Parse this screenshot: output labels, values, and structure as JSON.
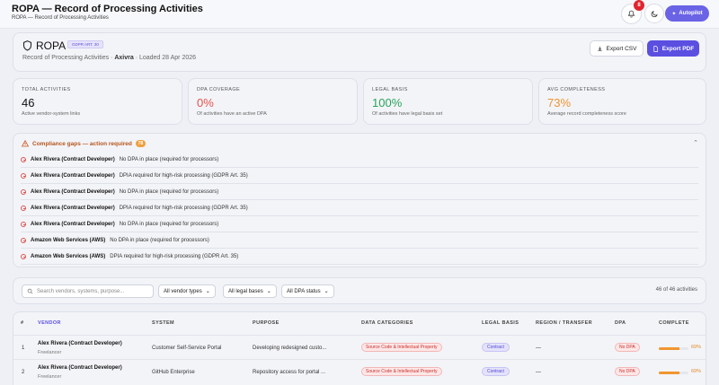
{
  "header": {
    "title": "ROPA — Record of Processing Activities",
    "subtitle": "ROPA — Record of Processing Activities",
    "notifications": "8",
    "autopilot": "Autopilot"
  },
  "ropa": {
    "title": "ROPA",
    "badge": "GDPR ART. 30",
    "meta_prefix": "Record of Processing Activities ·",
    "org": "Axivra",
    "meta_suffix": "· Loaded 28 Apr 2026",
    "export_csv": "Export CSV",
    "export_pdf": "Export PDF"
  },
  "stats": [
    {
      "label": "TOTAL ACTIVITIES",
      "value": "46",
      "hint": "Active vendor-system links",
      "color": "#111111"
    },
    {
      "label": "DPA COVERAGE",
      "value": "0%",
      "hint": "Of activities have an active DPA",
      "color": "#e5534b"
    },
    {
      "label": "LEGAL BASIS",
      "value": "100%",
      "hint": "Of activities have legal basis set",
      "color": "#2aa45a"
    },
    {
      "label": "AVG COMPLETENESS",
      "value": "73%",
      "hint": "Average record completeness score",
      "color": "#ee9433"
    }
  ],
  "gaps": {
    "title": "Compliance gaps — action required",
    "count": "78",
    "rows": [
      {
        "vendor": "Alex Rivera (Contract Developer)",
        "issue": "No DPA in place (required for processors)"
      },
      {
        "vendor": "Alex Rivera (Contract Developer)",
        "issue": "DPIA required for high-risk processing (GDPR Art. 35)"
      },
      {
        "vendor": "Alex Rivera (Contract Developer)",
        "issue": "No DPA in place (required for processors)"
      },
      {
        "vendor": "Alex Rivera (Contract Developer)",
        "issue": "DPIA required for high-risk processing (GDPR Art. 35)"
      },
      {
        "vendor": "Alex Rivera (Contract Developer)",
        "issue": "No DPA in place (required for processors)"
      },
      {
        "vendor": "Amazon Web Services (AWS)",
        "issue": "No DPA in place (required for processors)"
      },
      {
        "vendor": "Amazon Web Services (AWS)",
        "issue": "DPIA required for high-risk processing (GDPR Art. 35)"
      }
    ]
  },
  "filters": {
    "search_placeholder": "Search vendors, systems, purpose...",
    "vendor_types": "All vendor types",
    "legal_bases": "All legal bases",
    "dpa_status": "All DPA status",
    "count": "46 of 46 activities"
  },
  "table": {
    "columns": [
      "#",
      "VENDOR",
      "SYSTEM",
      "PURPOSE",
      "DATA CATEGORIES",
      "LEGAL BASIS",
      "REGION / TRANSFER",
      "DPA",
      "COMPLETE"
    ],
    "rows": [
      {
        "num": "1",
        "vendor": "Alex Rivera (Contract Developer)",
        "type": "Freelancer",
        "system": "Customer Self-Service Portal",
        "purpose": "Developing redesigned custo...",
        "category": "Source Code & Intellectual Property",
        "legal": "Contract",
        "region": "—",
        "dpa": "No DPA",
        "complete": 0.69,
        "complete_label": "69%"
      },
      {
        "num": "2",
        "vendor": "Alex Rivera (Contract Developer)",
        "type": "Freelancer",
        "system": "GitHub Enterprise",
        "purpose": "Repository access for portal ...",
        "category": "Source Code & Intellectual Property",
        "legal": "Contract",
        "region": "—",
        "dpa": "No DPA",
        "complete": 0.69,
        "complete_label": "69%"
      }
    ]
  }
}
